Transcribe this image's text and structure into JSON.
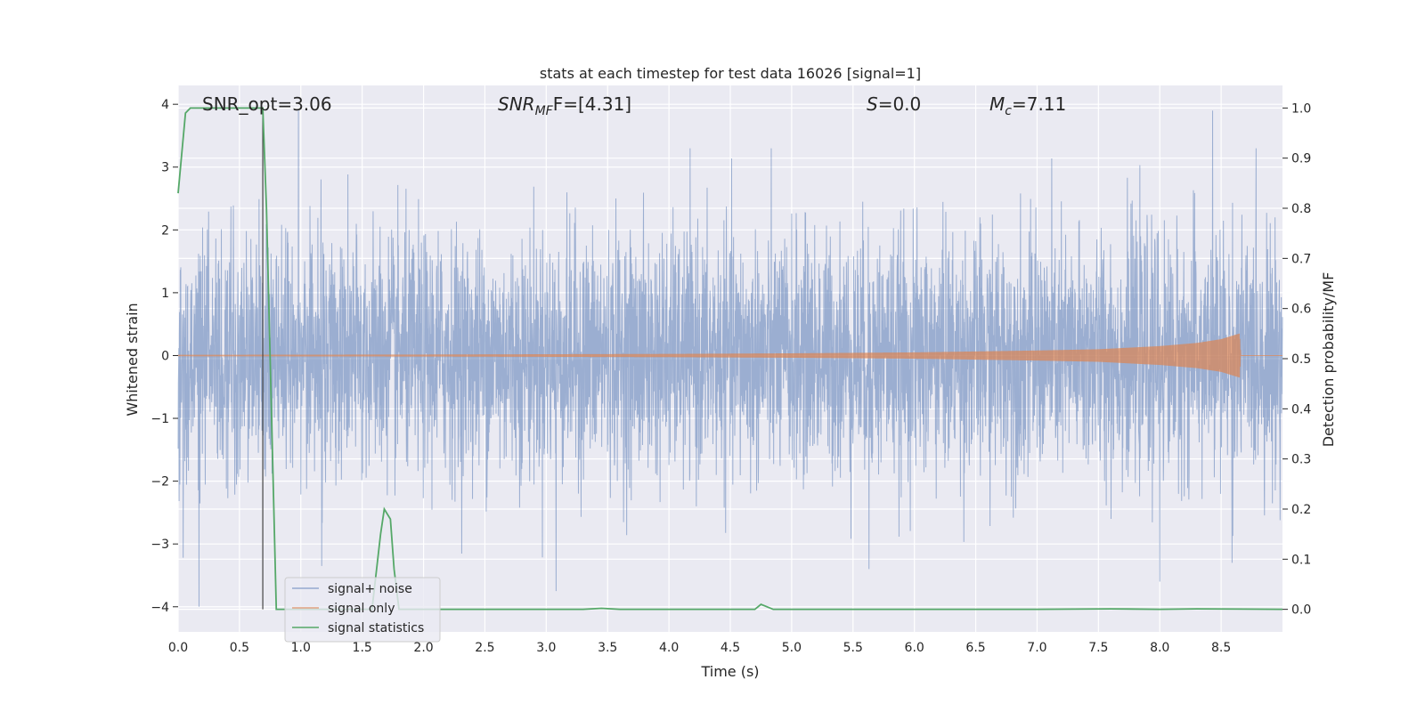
{
  "chart_data": {
    "type": "line",
    "title": "stats at each timestep for test data 16026 [signal=1]",
    "xlabel": "Time (s)",
    "ylabel": "Whitened strain",
    "ylabel_right": "Detection probability/MF",
    "xlim": [
      0.0,
      9.0
    ],
    "ylim": [
      -4.4,
      4.3
    ],
    "ylim_right": [
      -0.045,
      1.045
    ],
    "xticks": [
      0.0,
      0.5,
      1.0,
      1.5,
      2.0,
      2.5,
      3.0,
      3.5,
      4.0,
      4.5,
      5.0,
      5.5,
      6.0,
      6.5,
      7.0,
      7.5,
      8.0,
      8.5
    ],
    "xtick_labels": [
      "0.0",
      "0.5",
      "1.0",
      "1.5",
      "2.0",
      "2.5",
      "3.0",
      "3.5",
      "4.0",
      "4.5",
      "5.0",
      "5.5",
      "6.0",
      "6.5",
      "7.0",
      "7.5",
      "8.0",
      "8.5"
    ],
    "yticks": [
      -4,
      -3,
      -2,
      -1,
      0,
      1,
      2,
      3,
      4
    ],
    "ytick_labels": [
      "−4",
      "−3",
      "−2",
      "−1",
      "0",
      "1",
      "2",
      "3",
      "4"
    ],
    "yticks_right": [
      0.0,
      0.1,
      0.2,
      0.3,
      0.4,
      0.5,
      0.6,
      0.7,
      0.8,
      0.9,
      1.0
    ],
    "ytick_labels_right": [
      "0.0",
      "0.1",
      "0.2",
      "0.3",
      "0.4",
      "0.5",
      "0.6",
      "0.7",
      "0.8",
      "0.9",
      "1.0"
    ],
    "grid": true,
    "legend_position": "lower-left",
    "annotations": {
      "snr_opt": "SNR_opt=3.06",
      "snr_mf_main": "SNR",
      "snr_mf_sub": "MF",
      "snr_mf_rest": "F=[4.31]",
      "s_main": "S",
      "s_rest": "=0.0",
      "mc_main": "M",
      "mc_sub": "c",
      "mc_rest": "=7.11"
    },
    "marker_line_x": 0.69,
    "series": [
      {
        "name": "signal+ noise",
        "color": "#4c72b0",
        "axis": "left",
        "note_values": "dense noisy strain sampled densely, amplitude mostly within [-2.5, 2.5] with spikes up to 3.9 and down to -4.0",
        "peaks": [
          [
            0.17,
            -4.0
          ],
          [
            0.98,
            3.9
          ],
          [
            1.17,
            -3.35
          ],
          [
            3.08,
            -3.75
          ],
          [
            5.63,
            -3.4
          ],
          [
            8.0,
            -3.6
          ],
          [
            8.43,
            3.9
          ],
          [
            8.59,
            -3.3
          ]
        ]
      },
      {
        "name": "signal only",
        "color": "#dd8452",
        "axis": "left",
        "note_values": "chirp signal growing in amplitude from near 0 to about 0.35 at t=8.65 s then ending",
        "envelope": [
          [
            0.0,
            0.01
          ],
          [
            2.0,
            0.015
          ],
          [
            4.0,
            0.025
          ],
          [
            5.0,
            0.035
          ],
          [
            6.0,
            0.05
          ],
          [
            7.0,
            0.08
          ],
          [
            7.5,
            0.1
          ],
          [
            8.0,
            0.15
          ],
          [
            8.3,
            0.2
          ],
          [
            8.5,
            0.26
          ],
          [
            8.6,
            0.32
          ],
          [
            8.65,
            0.35
          ],
          [
            8.66,
            0.0
          ],
          [
            9.0,
            0.0
          ]
        ]
      },
      {
        "name": "signal statistics",
        "color": "#55a868",
        "axis": "right",
        "x": [
          0.0,
          0.06,
          0.1,
          0.2,
          0.3,
          0.4,
          0.5,
          0.6,
          0.65,
          0.68,
          0.69,
          0.72,
          0.76,
          0.8,
          1.0,
          1.2,
          1.4,
          1.58,
          1.65,
          1.68,
          1.73,
          1.76,
          1.8,
          2.0,
          3.0,
          3.3,
          3.45,
          3.6,
          4.0,
          4.5,
          4.7,
          4.75,
          4.85,
          5.0,
          6.0,
          7.0,
          7.6,
          8.0,
          8.3,
          9.0
        ],
        "y": [
          0.83,
          0.99,
          1.0,
          1.0,
          1.0,
          1.0,
          1.0,
          1.0,
          1.0,
          1.0,
          1.0,
          0.8,
          0.4,
          0.0,
          0.0,
          0.0,
          0.0,
          0.0,
          0.15,
          0.2,
          0.18,
          0.08,
          0.0,
          0.0,
          0.0,
          0.0,
          0.002,
          0.0,
          0.0,
          0.0,
          0.0,
          0.01,
          0.0,
          0.0,
          0.0,
          0.0,
          0.001,
          0.0,
          0.001,
          0.0
        ]
      }
    ]
  }
}
